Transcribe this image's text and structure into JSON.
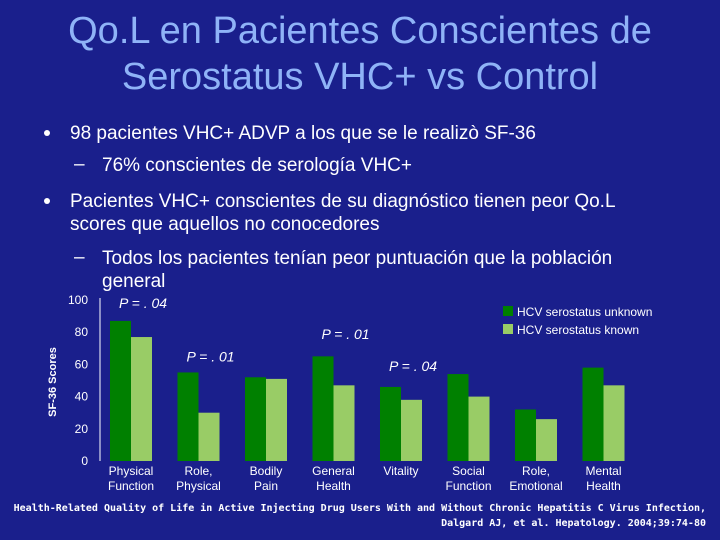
{
  "title_line1": "Qo.L en Pacientes Conscientes de",
  "title_line2": "Serostatus VHC+ vs Control",
  "bullets": [
    {
      "text": "98 pacientes VHC+ ADVP a los que se le realizò SF-36"
    },
    {
      "text": "76% conscientes de serología VHC+"
    },
    {
      "text_line1": "Pacientes VHC+  conscientes de su diagnóstico tienen peor Qo.L",
      "text_line2": "scores que aquellos no conocedores"
    },
    {
      "text_line1": "Todos los pacientes tenían peor puntuación que la población",
      "text_line2": "general"
    }
  ],
  "dash": "–",
  "citation_line1": "Health-Related Quality of Life in Active Injecting Drug Users With and Without Chronic Hepatitis C Virus Infection,",
  "citation_line2": "Dalgard AJ, et al. Hepatology. 2004;39:74-80",
  "colors": {
    "unknown": "#008000",
    "known": "#99cc66",
    "background": "#1a1f8c",
    "title": "#8fb3f7"
  },
  "chart_data": {
    "type": "bar",
    "ylabel": "SF-36 Scores",
    "ylim": [
      0,
      100
    ],
    "yticks": [
      0,
      20,
      40,
      60,
      80,
      100
    ],
    "grid": false,
    "legend_position": "top-right",
    "categories": [
      [
        "Physical",
        "Function"
      ],
      [
        "Role,",
        "Physical"
      ],
      [
        "Bodily",
        "Pain"
      ],
      [
        "General",
        "Health"
      ],
      [
        "Vitality"
      ],
      [
        "Social",
        "Function"
      ],
      [
        "Role,",
        "Emotional"
      ],
      [
        "Mental",
        "Health"
      ]
    ],
    "series": [
      {
        "name": "HCV serostatus unknown",
        "values": [
          87,
          55,
          52,
          65,
          46,
          54,
          32,
          58
        ]
      },
      {
        "name": "HCV serostatus known",
        "values": [
          77,
          30,
          51,
          47,
          38,
          40,
          26,
          47
        ]
      }
    ],
    "annotations": [
      {
        "text": "P = . 04",
        "x_index": 0,
        "y": 98
      },
      {
        "text": "P = . 01",
        "x_index": 1,
        "y": 65
      },
      {
        "text": "P = . 01",
        "x_index": 3,
        "y": 79
      },
      {
        "text": "P = . 04",
        "x_index": 4,
        "y": 59
      }
    ]
  }
}
